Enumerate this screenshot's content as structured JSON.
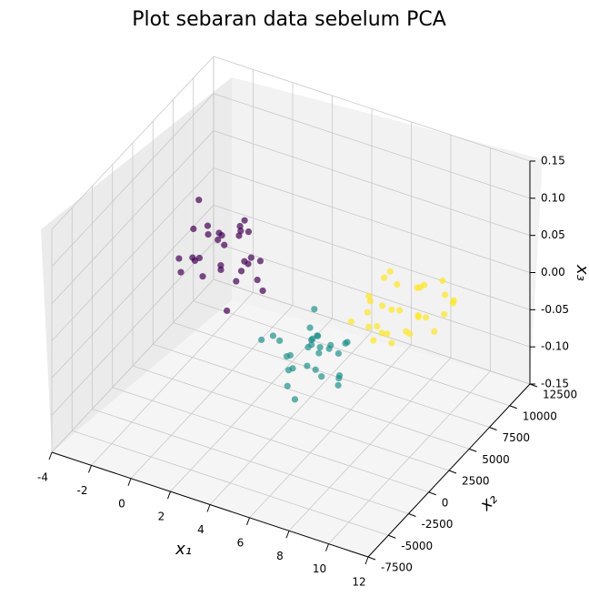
{
  "chart_data": {
    "type": "scatter3d",
    "title": "Plot sebaran data sebelum PCA",
    "xlabel": "x₁",
    "ylabel": "x₂",
    "zlabel": "x₃",
    "xlim": [
      -4,
      12
    ],
    "ylim": [
      -7500,
      12500
    ],
    "zlim": [
      -0.15,
      0.15
    ],
    "xticks": [
      -4,
      -2,
      0,
      2,
      4,
      6,
      8,
      10,
      12
    ],
    "yticks": [
      -7500,
      -5000,
      -2500,
      0,
      2500,
      5000,
      7500,
      10000,
      12500
    ],
    "zticks": [
      -0.15,
      {
        "value": -0.1,
        "label": "-0.10"
      },
      -0.05,
      {
        "value": 0,
        "label": "0.00"
      },
      0.05,
      {
        "value": 0.1,
        "label": "0.10"
      },
      0.15
    ],
    "grid": true,
    "series": [
      {
        "color": "#440154",
        "x": [
          -0.7,
          0.3,
          -1.5,
          0.8,
          -2.1,
          0.1,
          -0.3,
          1.2,
          -1.0,
          0.6,
          -1.8,
          -0.2,
          0.9,
          -0.9,
          1.5,
          -2.6,
          0.4,
          -1.3,
          0.0,
          1.0,
          -0.5,
          -1.6,
          0.7,
          -0.1,
          1.8,
          -1.1,
          0.2,
          -2.3,
          0.5,
          -0.8
        ],
        "y": [
          4960,
          5800,
          3900,
          4200,
          6100,
          3500,
          6600,
          5200,
          4500,
          2900,
          5300,
          4100,
          6300,
          5600,
          3700,
          4800,
          5100,
          3300,
          7000,
          4600,
          2600,
          5900,
          3800,
          6800,
          4400,
          3100,
          5500,
          4300,
          2400,
          6000
        ],
        "z": [
          0.02,
          -0.01,
          0.04,
          0.0,
          -0.03,
          0.05,
          0.01,
          -0.02,
          0.03,
          -0.04,
          0.06,
          0.0,
          -0.01,
          0.02,
          0.03,
          -0.02,
          0.04,
          0.01,
          -0.03,
          0.05,
          0.0,
          0.02,
          -0.01,
          0.03,
          -0.02,
          0.01,
          0.04,
          -0.03,
          0.02,
          0.0
        ]
      },
      {
        "color": "#21918c",
        "x": [
          6.4,
          5.2,
          7.3,
          6.0,
          8.1,
          5.6,
          6.9,
          7.7,
          4.9,
          6.2,
          7.0,
          5.8,
          8.4,
          6.6,
          5.4,
          7.5,
          6.1,
          4.6,
          7.9,
          6.8,
          5.9,
          7.2,
          6.3,
          5.1,
          8.0,
          6.5,
          7.4,
          5.5,
          6.7,
          7.8
        ],
        "y": [
          -1230,
          -500,
          -2100,
          300,
          -1500,
          -2800,
          -800,
          200,
          -1900,
          -3300,
          -100,
          1000,
          -2400,
          -600,
          -1200,
          -3000,
          700,
          -2600,
          -1100,
          -1800,
          400,
          -400,
          -2900,
          -700,
          -300,
          -1600,
          -2200,
          1200,
          -3600,
          -900
        ],
        "z": [
          0.01,
          -0.02,
          0.02,
          0.0,
          -0.01,
          0.03,
          -0.03,
          0.01,
          0.02,
          -0.02,
          0.0,
          0.03,
          -0.01,
          0.02,
          -0.03,
          0.01,
          0.0,
          0.02,
          -0.02,
          0.03,
          -0.01,
          0.01,
          0.0,
          -0.02,
          0.02,
          -0.01,
          0.03,
          0.0,
          -0.03,
          0.01
        ]
      },
      {
        "color": "#fde725",
        "x": [
          8.0,
          9.1,
          7.2,
          8.6,
          10.0,
          7.6,
          8.9,
          9.6,
          6.9,
          8.3,
          9.9,
          7.9,
          10.4,
          8.5,
          7.4,
          9.3,
          8.1,
          6.6,
          9.8,
          8.8,
          7.7,
          10.2,
          8.4,
          7.1,
          9.5,
          8.2,
          9.0,
          7.5,
          8.7,
          10.6
        ],
        "y": [
          5190,
          6000,
          4300,
          4700,
          6600,
          3900,
          7000,
          5500,
          4900,
          3300,
          5800,
          4500,
          6900,
          6200,
          4000,
          5300,
          5600,
          3600,
          7400,
          5000,
          3100,
          6300,
          4200,
          7200,
          4800,
          3500,
          5900,
          4600,
          2900,
          6500
        ],
        "z": [
          0.0,
          0.03,
          -0.02,
          0.01,
          0.04,
          -0.03,
          0.02,
          0.0,
          -0.01,
          0.03,
          -0.02,
          0.05,
          0.01,
          -0.04,
          0.02,
          0.0,
          0.03,
          -0.01,
          0.01,
          -0.02,
          0.04,
          0.0,
          -0.03,
          0.02,
          0.01,
          -0.01,
          0.03,
          -0.02,
          0.0,
          0.02
        ]
      }
    ]
  }
}
